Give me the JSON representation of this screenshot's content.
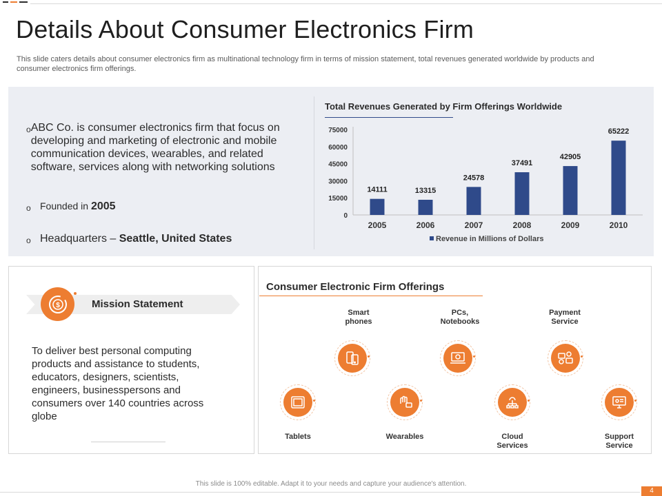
{
  "slide": {
    "title": "Details About Consumer Electronics Firm",
    "subtitle": "This slide caters details about consumer electronics firm as multinational technology firm in terms of mission statement, total revenues generated worldwide by products and consumer electronics firm offerings.",
    "accent_color": "#ed7d31",
    "bar_color": "#2f4a8a",
    "page_number": "4",
    "footer_note": "This slide is 100% editable. Adapt it to your needs and capture your audience's attention."
  },
  "about": {
    "bullet_mark": "o",
    "description": "ABC Co. is consumer electronics firm that focus on developing and marketing of electronic and mobile communication devices, wearables, and related software, services along with networking solutions",
    "founded_prefix": "Founded in ",
    "founded_year": "2005",
    "hq_prefix": "Headquarters – ",
    "hq_location": "Seattle, United States"
  },
  "chart_data": {
    "type": "bar",
    "title": "Total Revenues Generated by Firm Offerings Worldwide",
    "categories": [
      "2005",
      "2006",
      "2007",
      "2008",
      "2009",
      "2010"
    ],
    "series": [
      {
        "name": "Revenue in Millions of Dollars",
        "values": [
          14111,
          13315,
          24578,
          37491,
          42905,
          65222
        ]
      }
    ],
    "y_ticks": [
      0,
      15000,
      30000,
      45000,
      60000,
      75000
    ],
    "ylim": [
      0,
      75000
    ],
    "data_labels": true,
    "legend_position": "bottom",
    "grid": false,
    "xlabel": "",
    "ylabel": ""
  },
  "mission": {
    "label": "Mission Statement",
    "icon": "dollar-refresh-icon",
    "text": "To deliver best personal computing products and assistance to students, educators, designers, scientists, engineers, businesspersons and consumers over 140 countries across globe"
  },
  "offerings": {
    "title": "Consumer Electronic Firm Offerings",
    "items": [
      {
        "label": "Smart\nphones",
        "icon": "smartphone-icon"
      },
      {
        "label": "PCs,\nNotebooks",
        "icon": "laptop-icon"
      },
      {
        "label": "Payment\nService",
        "icon": "payment-icon"
      },
      {
        "label": "Tablets",
        "icon": "tablet-icon"
      },
      {
        "label": "Wearables",
        "icon": "wearable-icon"
      },
      {
        "label": "Cloud\nServices",
        "icon": "cloud-network-icon"
      },
      {
        "label": "Support\nService",
        "icon": "support-monitor-icon"
      }
    ]
  }
}
